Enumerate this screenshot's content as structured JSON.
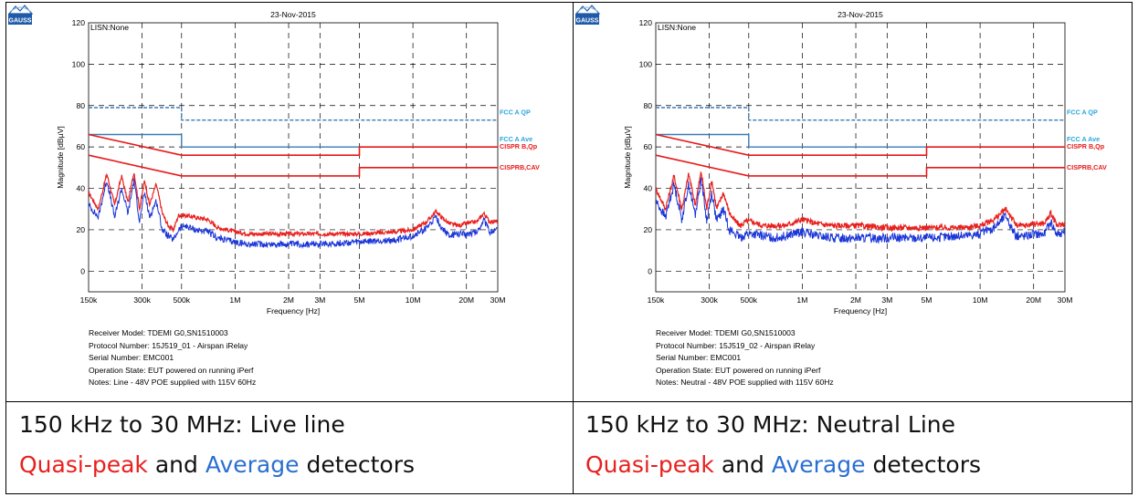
{
  "panels": [
    {
      "logo_text": "GAUSS",
      "info": {
        "receiver": "Receiver Model: TDEMI G0,SN1510003",
        "protocol": "Protocol Number: 15J519_01 - Airspan iRelay",
        "serial": "Serial Number: EMC001",
        "operation": "Operation State: EUT powered on running iPerf",
        "notes": "Notes: Line - 48V POE supplied with 115V 60Hz"
      },
      "caption": {
        "line1": "150 kHz to 30 MHz: Live line",
        "qp_word": "Quasi-peak",
        "and_word": " and ",
        "av_word": "Average",
        "tail": " detectors"
      }
    },
    {
      "logo_text": "GAUSS",
      "info": {
        "receiver": "Receiver Model: TDEMI G0,SN1510003",
        "protocol": "Protocol Number: 15J519_02 - Airspan iRelay",
        "serial": "Serial Number: EMC001",
        "operation": "Operation State: EUT powered on running iPerf",
        "notes": "Notes: Neutral - 48V POE supplied with 115V 60Hz"
      },
      "caption": {
        "line1": "150 kHz to 30 MHz: Neutral Line",
        "qp_word": "Quasi-peak",
        "and_word": " and ",
        "av_word": "Average",
        "tail": " detectors"
      }
    }
  ],
  "colors": {
    "qp": "#e8201e",
    "average": "#1a35d8",
    "fcc": "#3a7ab8",
    "fcc_label": "#2aa6df",
    "cispr": "#e81818",
    "caption_qp": "#e8201e",
    "caption_av": "#2a6fd0"
  },
  "chart_data": [
    {
      "type": "line",
      "title": "23-Nov-2015",
      "corner_label": "LISN:None",
      "xlabel": "Frequency [Hz]",
      "ylabel": "Magnitude [dBµV]",
      "x_scale": "log",
      "xlim": [
        150000,
        30000000
      ],
      "ylim": [
        -10,
        120
      ],
      "x_ticks": [
        150000,
        300000,
        500000,
        1000000,
        2000000,
        3000000,
        5000000,
        10000000,
        20000000,
        30000000
      ],
      "x_tick_labels": [
        "150k",
        "300k",
        "500k",
        "1M",
        "2M",
        "3M",
        "5M",
        "10M",
        "20M",
        "30M"
      ],
      "y_ticks": [
        0,
        20,
        40,
        60,
        80,
        100,
        120
      ],
      "y_tick_labels": [
        "0",
        "20",
        "40",
        "60",
        "80",
        "100",
        "120"
      ],
      "grid": true,
      "limits": [
        {
          "name": "FCC A QP",
          "style": "dashed",
          "color": "fcc",
          "points": [
            [
              150000,
              79
            ],
            [
              500000,
              79
            ],
            [
              500000,
              73
            ],
            [
              30000000,
              73
            ]
          ]
        },
        {
          "name": "FCC A Ave",
          "style": "solid",
          "color": "fcc",
          "points": [
            [
              150000,
              66
            ],
            [
              500000,
              66
            ],
            [
              500000,
              60
            ],
            [
              30000000,
              60
            ]
          ]
        },
        {
          "name": "CISPR B,Qp",
          "style": "solid",
          "color": "cispr",
          "points": [
            [
              150000,
              66
            ],
            [
              500000,
              56
            ],
            [
              5000000,
              56
            ],
            [
              5000000,
              60
            ],
            [
              30000000,
              60
            ]
          ]
        },
        {
          "name": "CISPRB,CAV",
          "style": "solid",
          "color": "cispr",
          "points": [
            [
              150000,
              56
            ],
            [
              500000,
              46
            ],
            [
              5000000,
              46
            ],
            [
              5000000,
              50
            ],
            [
              30000000,
              50
            ]
          ]
        }
      ],
      "series": [
        {
          "color": "qp",
          "width": 1.2,
          "noise": 1.0,
          "points": [
            [
              150000,
              38
            ],
            [
              170000,
              30
            ],
            [
              190000,
              47
            ],
            [
              210000,
              32
            ],
            [
              230000,
              46
            ],
            [
              250000,
              33
            ],
            [
              270000,
              48
            ],
            [
              290000,
              30
            ],
            [
              310000,
              44
            ],
            [
              330000,
              32
            ],
            [
              360000,
              42
            ],
            [
              390000,
              28
            ],
            [
              420000,
              22
            ],
            [
              450000,
              20
            ],
            [
              480000,
              27
            ],
            [
              520000,
              27
            ],
            [
              600000,
              26
            ],
            [
              700000,
              25
            ],
            [
              800000,
              21
            ],
            [
              900000,
              20
            ],
            [
              1000000,
              19
            ],
            [
              1200000,
              18
            ],
            [
              1500000,
              18
            ],
            [
              2000000,
              18
            ],
            [
              3000000,
              18
            ],
            [
              5000000,
              18
            ],
            [
              8000000,
              19
            ],
            [
              10000000,
              20
            ],
            [
              12000000,
              24
            ],
            [
              13500000,
              29
            ],
            [
              14500000,
              26
            ],
            [
              16000000,
              23
            ],
            [
              18000000,
              22
            ],
            [
              20000000,
              23
            ],
            [
              23000000,
              24
            ],
            [
              25000000,
              28
            ],
            [
              27000000,
              24
            ],
            [
              30000000,
              24
            ]
          ]
        },
        {
          "color": "average",
          "width": 1.0,
          "noise": 1.6,
          "points": [
            [
              150000,
              32
            ],
            [
              170000,
              26
            ],
            [
              190000,
              44
            ],
            [
              210000,
              26
            ],
            [
              230000,
              40
            ],
            [
              250000,
              28
            ],
            [
              270000,
              44
            ],
            [
              290000,
              24
            ],
            [
              310000,
              38
            ],
            [
              330000,
              26
            ],
            [
              360000,
              34
            ],
            [
              390000,
              20
            ],
            [
              420000,
              17
            ],
            [
              450000,
              15
            ],
            [
              480000,
              20
            ],
            [
              520000,
              22
            ],
            [
              600000,
              20
            ],
            [
              700000,
              19
            ],
            [
              800000,
              16
            ],
            [
              900000,
              15
            ],
            [
              1000000,
              14
            ],
            [
              1200000,
              13
            ],
            [
              1500000,
              13
            ],
            [
              2000000,
              13
            ],
            [
              3000000,
              13
            ],
            [
              5000000,
              14
            ],
            [
              8000000,
              15
            ],
            [
              10000000,
              17
            ],
            [
              12000000,
              21
            ],
            [
              13500000,
              26
            ],
            [
              14500000,
              21
            ],
            [
              16000000,
              17
            ],
            [
              18000000,
              18
            ],
            [
              20000000,
              18
            ],
            [
              23000000,
              19
            ],
            [
              25000000,
              25
            ],
            [
              27000000,
              19
            ],
            [
              30000000,
              20
            ]
          ]
        }
      ]
    },
    {
      "type": "line",
      "title": "23-Nov-2015",
      "corner_label": "LISN:None",
      "xlabel": "Frequency [Hz]",
      "ylabel": "Magnitude [dBµV]",
      "x_scale": "log",
      "xlim": [
        150000,
        30000000
      ],
      "ylim": [
        -10,
        120
      ],
      "x_ticks": [
        150000,
        300000,
        500000,
        1000000,
        2000000,
        3000000,
        5000000,
        10000000,
        20000000,
        30000000
      ],
      "x_tick_labels": [
        "150k",
        "300k",
        "500k",
        "1M",
        "2M",
        "3M",
        "5M",
        "10M",
        "20M",
        "30M"
      ],
      "y_ticks": [
        0,
        20,
        40,
        60,
        80,
        100,
        120
      ],
      "y_tick_labels": [
        "0",
        "20",
        "40",
        "60",
        "80",
        "100",
        "120"
      ],
      "grid": true,
      "limits": [
        {
          "name": "FCC A QP",
          "style": "dashed",
          "color": "fcc",
          "points": [
            [
              150000,
              79
            ],
            [
              500000,
              79
            ],
            [
              500000,
              73
            ],
            [
              30000000,
              73
            ]
          ]
        },
        {
          "name": "FCC A Ave",
          "style": "solid",
          "color": "fcc",
          "points": [
            [
              150000,
              66
            ],
            [
              500000,
              66
            ],
            [
              500000,
              60
            ],
            [
              30000000,
              60
            ]
          ]
        },
        {
          "name": "CISPR B,Qp",
          "style": "solid",
          "color": "cispr",
          "points": [
            [
              150000,
              66
            ],
            [
              500000,
              56
            ],
            [
              5000000,
              56
            ],
            [
              5000000,
              60
            ],
            [
              30000000,
              60
            ]
          ]
        },
        {
          "name": "CISPRB,CAV",
          "style": "solid",
          "color": "cispr",
          "points": [
            [
              150000,
              56
            ],
            [
              500000,
              46
            ],
            [
              5000000,
              46
            ],
            [
              5000000,
              50
            ],
            [
              30000000,
              50
            ]
          ]
        }
      ],
      "series": [
        {
          "color": "qp",
          "width": 1.2,
          "noise": 1.4,
          "points": [
            [
              150000,
              40
            ],
            [
              170000,
              30
            ],
            [
              190000,
              46
            ],
            [
              210000,
              30
            ],
            [
              230000,
              47
            ],
            [
              250000,
              32
            ],
            [
              270000,
              48
            ],
            [
              290000,
              30
            ],
            [
              310000,
              44
            ],
            [
              330000,
              30
            ],
            [
              360000,
              38
            ],
            [
              390000,
              28
            ],
            [
              420000,
              24
            ],
            [
              450000,
              22
            ],
            [
              480000,
              24
            ],
            [
              520000,
              24
            ],
            [
              600000,
              22
            ],
            [
              700000,
              22
            ],
            [
              800000,
              22
            ],
            [
              1000000,
              25
            ],
            [
              1200000,
              23
            ],
            [
              1500000,
              22
            ],
            [
              2000000,
              22
            ],
            [
              3000000,
              21
            ],
            [
              5000000,
              21
            ],
            [
              8000000,
              21
            ],
            [
              10000000,
              22
            ],
            [
              12000000,
              25
            ],
            [
              14000000,
              30
            ],
            [
              15000000,
              26
            ],
            [
              16000000,
              22
            ],
            [
              18000000,
              22
            ],
            [
              20000000,
              23
            ],
            [
              23000000,
              23
            ],
            [
              25000000,
              28
            ],
            [
              27000000,
              22
            ],
            [
              30000000,
              23
            ]
          ]
        },
        {
          "color": "average",
          "width": 1.0,
          "noise": 2.2,
          "points": [
            [
              150000,
              34
            ],
            [
              170000,
              26
            ],
            [
              190000,
              42
            ],
            [
              210000,
              25
            ],
            [
              230000,
              42
            ],
            [
              250000,
              27
            ],
            [
              270000,
              45
            ],
            [
              290000,
              24
            ],
            [
              310000,
              38
            ],
            [
              330000,
              24
            ],
            [
              360000,
              30
            ],
            [
              390000,
              20
            ],
            [
              420000,
              18
            ],
            [
              450000,
              16
            ],
            [
              480000,
              18
            ],
            [
              520000,
              18
            ],
            [
              600000,
              17
            ],
            [
              700000,
              16
            ],
            [
              800000,
              17
            ],
            [
              1000000,
              19
            ],
            [
              1200000,
              17
            ],
            [
              1500000,
              16
            ],
            [
              2000000,
              16
            ],
            [
              3000000,
              16
            ],
            [
              5000000,
              16
            ],
            [
              8000000,
              17
            ],
            [
              10000000,
              18
            ],
            [
              12000000,
              21
            ],
            [
              14000000,
              27
            ],
            [
              15000000,
              21
            ],
            [
              16000000,
              17
            ],
            [
              18000000,
              17
            ],
            [
              20000000,
              18
            ],
            [
              23000000,
              18
            ],
            [
              25000000,
              24
            ],
            [
              27000000,
              18
            ],
            [
              30000000,
              19
            ]
          ]
        }
      ]
    }
  ]
}
